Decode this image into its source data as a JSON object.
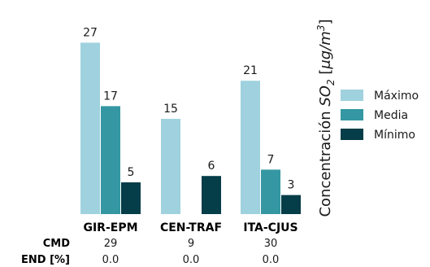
{
  "chart_data": {
    "type": "bar",
    "categories": [
      "GIR-EPM",
      "CEN-TRAF",
      "ITA-CJUS"
    ],
    "series": [
      {
        "name": "Máximo",
        "color": "#9fd2de",
        "values": [
          27,
          15,
          21
        ]
      },
      {
        "name": "Media",
        "color": "#3497a2",
        "values": [
          17,
          null,
          7
        ]
      },
      {
        "name": "Mínimo",
        "color": "#053d48",
        "values": [
          5,
          6,
          3
        ]
      }
    ],
    "ylim": [
      0,
      30
    ],
    "ylabel": {
      "prefix": "Concentración ",
      "species": "SO",
      "species_sub": "2",
      "unit_open": " [",
      "unit": "μg/m",
      "unit_sup": "3",
      "unit_close": "]"
    },
    "legend_position": "right",
    "grid": false,
    "data_labels": true,
    "footer_rows": [
      {
        "label": "CMD",
        "values": [
          "29",
          "9",
          "30"
        ]
      },
      {
        "label": "END [%]",
        "values": [
          "0.0",
          "0.0",
          "0.0"
        ]
      }
    ]
  }
}
